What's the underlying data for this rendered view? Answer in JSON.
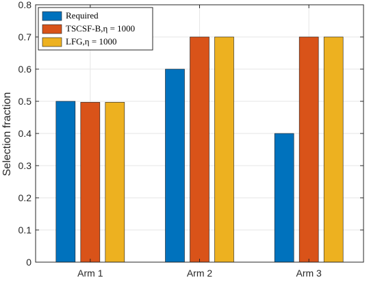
{
  "chart_data": {
    "type": "bar",
    "categories": [
      "Arm 1",
      "Arm 2",
      "Arm 3"
    ],
    "series": [
      {
        "name": "Required",
        "values": [
          0.5,
          0.6,
          0.4
        ],
        "color": "#0072BD"
      },
      {
        "name": "TSCSF-B,η = 1000",
        "values": [
          0.497,
          0.7,
          0.7
        ],
        "color": "#D95319"
      },
      {
        "name": "LFG,η = 1000",
        "values": [
          0.497,
          0.7,
          0.7
        ],
        "color": "#EDB120"
      }
    ],
    "ylabel": "Selection fraction",
    "xlabel": "",
    "title": "",
    "ylim": [
      0,
      0.8
    ],
    "yticks": [
      0,
      0.1,
      0.2,
      0.3,
      0.4,
      0.5,
      0.6,
      0.7,
      0.8
    ],
    "ytick_labels": [
      "0",
      "0.1",
      "0.2",
      "0.3",
      "0.4",
      "0.5",
      "0.6",
      "0.7",
      "0.8"
    ],
    "grid": true,
    "legend_position": "top-left"
  }
}
